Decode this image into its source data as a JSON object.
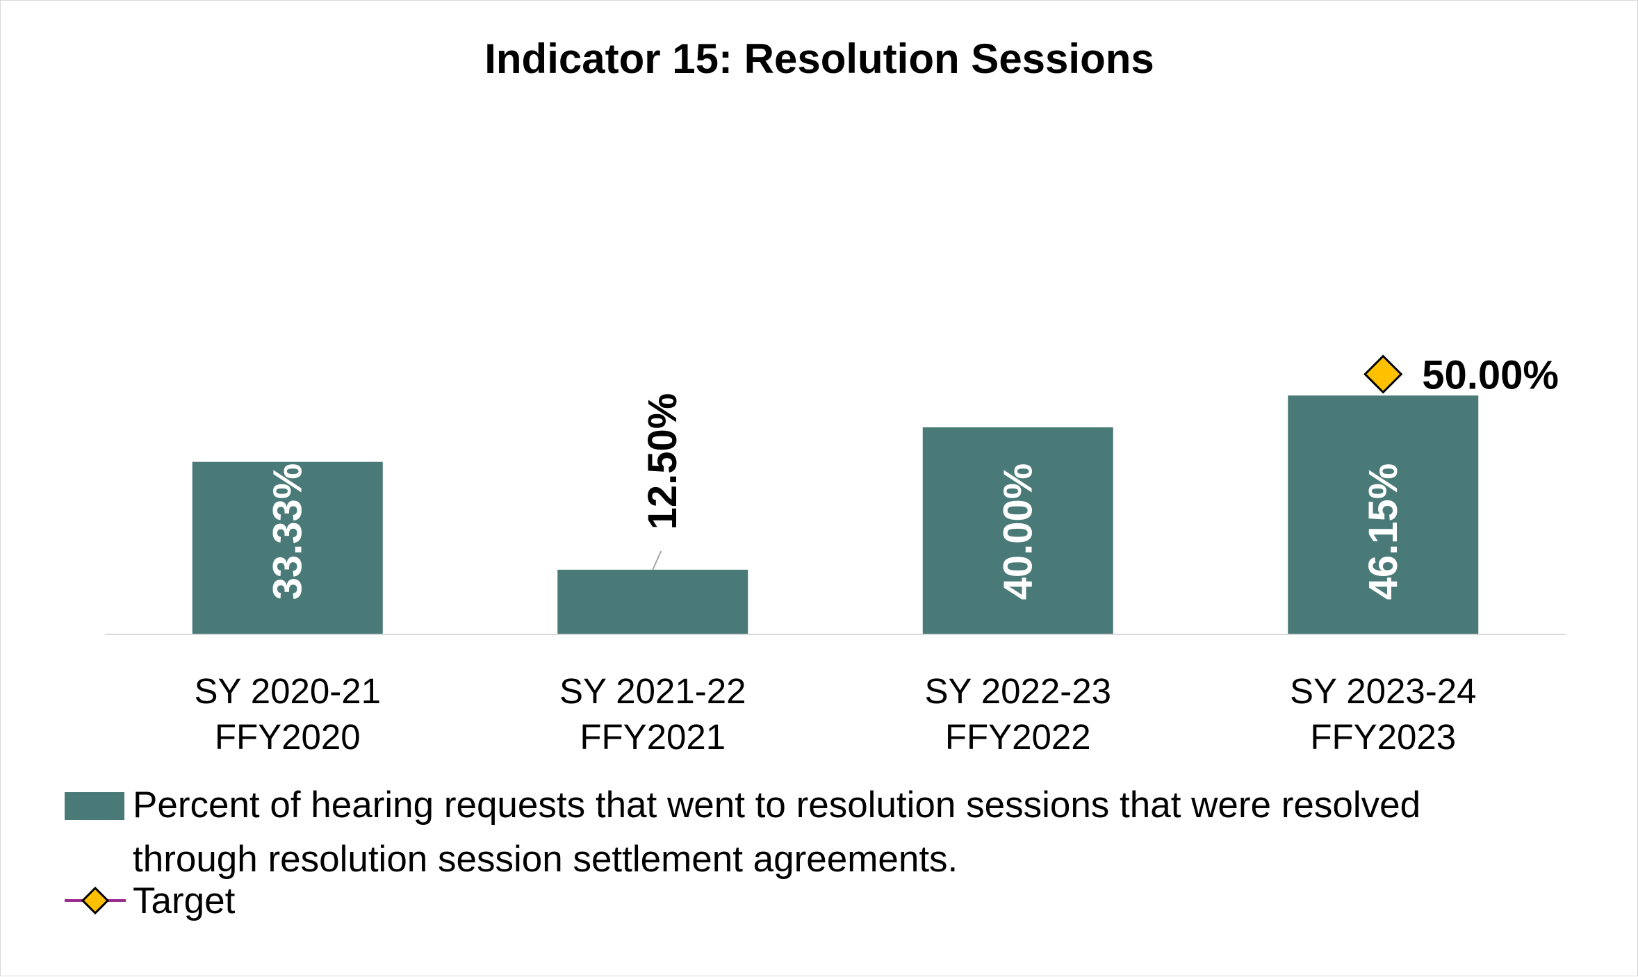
{
  "chart_data": {
    "type": "bar",
    "title": "Indicator 15: Resolution Sessions",
    "categories": [
      [
        "SY 2020-21",
        "FFY2020"
      ],
      [
        "SY 2021-22",
        "FFY2021"
      ],
      [
        "SY 2022-23",
        "FFY2022"
      ],
      [
        "SY 2023-24",
        "FFY2023"
      ]
    ],
    "series": [
      {
        "name": "Percent of hearing requests that went to resolution sessions that were resolved through resolution session settlement agreements.",
        "values": [
          33.33,
          12.5,
          40.0,
          46.15
        ],
        "labels": [
          "33.33%",
          "12.50%",
          "40.00%",
          "46.15%"
        ],
        "color": "#4a7a78"
      },
      {
        "name": "Target",
        "values": [
          null,
          null,
          null,
          50.0
        ],
        "labels": [
          null,
          null,
          null,
          "50.00%"
        ],
        "marker": "diamond",
        "marker_color": "#ffc000",
        "line_color": "#9b2d8e"
      }
    ],
    "legend_lines": [
      "Percent of hearing requests that went to resolution sessions that were resolved",
      "through resolution session settlement agreements."
    ],
    "ylim": [
      0,
      100
    ],
    "grid": false,
    "legend_position": "bottom"
  }
}
